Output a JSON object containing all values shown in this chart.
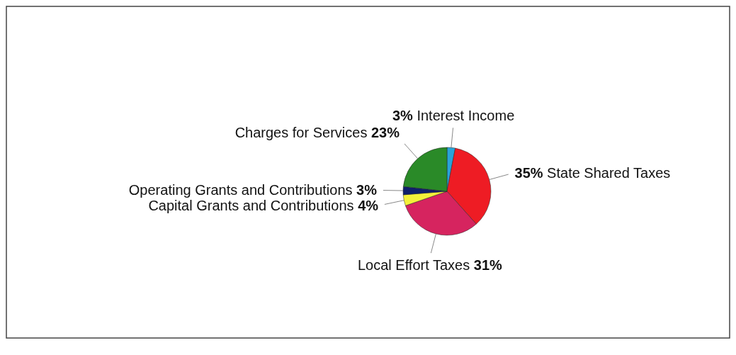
{
  "chart_data": {
    "type": "pie",
    "categories": [
      "Interest Income",
      "State Shared Taxes",
      "Local Effort Taxes",
      "Capital Grants and Contributions",
      "Operating Grants and Contributions",
      "Charges for Services"
    ],
    "values": [
      3,
      35,
      31,
      4,
      3,
      23
    ],
    "colors": [
      "#2aa3d8",
      "#ee1c24",
      "#d6245f",
      "#f4f13a",
      "#10206b",
      "#2a8a28"
    ],
    "value_labels": [
      "3%",
      "35%",
      "31%",
      "4%",
      "3%",
      "23%"
    ]
  }
}
